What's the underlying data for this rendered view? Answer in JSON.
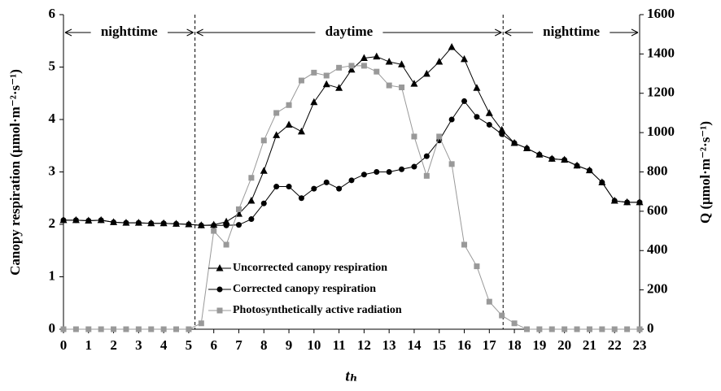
{
  "chart_data": {
    "type": "line",
    "x_label": "tₕ",
    "y_label": "Canopy respiration (μmol·m⁻²·s⁻¹)",
    "y2_label": "Q (μmol·m⁻²·s⁻¹)",
    "annotations": [
      "nighttime",
      "daytime",
      "nighttime"
    ],
    "vlines": [
      5.25,
      17.55
    ],
    "xlim": [
      0,
      23
    ],
    "ylim": [
      0,
      6
    ],
    "y2lim": [
      0,
      1600
    ],
    "xticks": [
      0,
      1,
      2,
      3,
      4,
      5,
      6,
      7,
      8,
      9,
      10,
      11,
      12,
      13,
      14,
      15,
      16,
      17,
      18,
      19,
      20,
      21,
      22,
      23
    ],
    "yticks": [
      0,
      1,
      2,
      3,
      4,
      5,
      6
    ],
    "y2ticks": [
      0,
      200,
      400,
      600,
      800,
      1000,
      1200,
      1400,
      1600
    ],
    "legend": "lower-left",
    "x": [
      0,
      0.5,
      1,
      1.5,
      2,
      2.5,
      3,
      3.5,
      4,
      4.5,
      5,
      5.5,
      6,
      6.5,
      7,
      7.5,
      8,
      8.5,
      9,
      9.5,
      10,
      10.5,
      11,
      11.5,
      12,
      12.5,
      13,
      13.5,
      14,
      14.5,
      15,
      15.5,
      16,
      16.5,
      17,
      17.5,
      18,
      18.5,
      19,
      19.5,
      20,
      20.5,
      21,
      21.5,
      22,
      22.5,
      23
    ],
    "series": [
      {
        "name": "Uncorrected canopy respiration",
        "color": "#000000",
        "marker": "triangle",
        "values": [
          2.08,
          2.08,
          2.07,
          2.08,
          2.04,
          2.03,
          2.03,
          2.02,
          2.02,
          2.01,
          2.0,
          1.98,
          1.99,
          2.05,
          2.2,
          2.45,
          3.02,
          3.7,
          3.9,
          3.77,
          4.33,
          4.67,
          4.6,
          4.95,
          5.17,
          5.2,
          5.1,
          5.05,
          4.68,
          4.87,
          5.1,
          5.38,
          5.15,
          4.6,
          4.12,
          3.8,
          3.55,
          3.45,
          3.33,
          3.25,
          3.23,
          3.12,
          3.03,
          2.8,
          2.45,
          2.42,
          2.42
        ]
      },
      {
        "name": "Corrected canopy respiration",
        "color": "#000000",
        "marker": "circle",
        "values": [
          2.08,
          2.08,
          2.07,
          2.08,
          2.04,
          2.03,
          2.03,
          2.02,
          2.02,
          2.01,
          2.0,
          1.98,
          1.98,
          1.98,
          1.99,
          2.1,
          2.4,
          2.72,
          2.72,
          2.5,
          2.68,
          2.8,
          2.68,
          2.84,
          2.95,
          3.0,
          3.0,
          3.05,
          3.1,
          3.3,
          3.6,
          4.0,
          4.35,
          4.05,
          3.9,
          3.72,
          3.55,
          3.45,
          3.33,
          3.25,
          3.23,
          3.12,
          3.03,
          2.8,
          2.45,
          2.42,
          2.42
        ]
      },
      {
        "name": "Photosynthetically active radiation",
        "color": "#999999",
        "marker": "square",
        "axis": "y2",
        "values": [
          0,
          0,
          0,
          0,
          0,
          0,
          0,
          0,
          0,
          0,
          0,
          30,
          500,
          430,
          610,
          770,
          960,
          1100,
          1140,
          1265,
          1305,
          1290,
          1330,
          1340,
          1340,
          1310,
          1240,
          1230,
          980,
          780,
          980,
          840,
          430,
          320,
          140,
          70,
          30,
          0,
          0,
          0,
          0,
          0,
          0,
          0,
          0,
          0,
          0
        ]
      }
    ]
  }
}
